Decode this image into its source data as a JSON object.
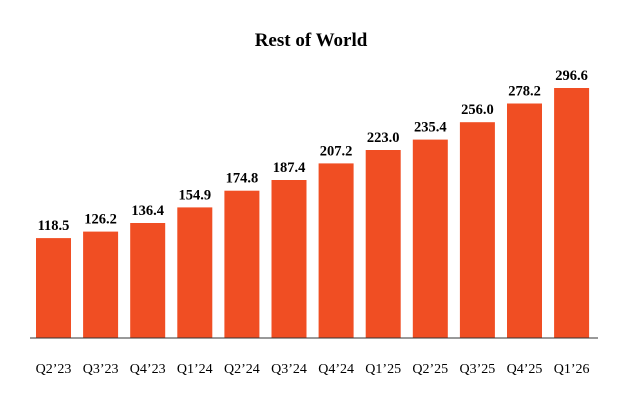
{
  "chart_data": {
    "type": "bar",
    "title": "Rest of World",
    "xlabel": "",
    "ylabel": "",
    "categories": [
      "Q2’23",
      "Q3’23",
      "Q4’23",
      "Q1’24",
      "Q2’24",
      "Q3’24",
      "Q4’24",
      "Q1’25",
      "Q2’25",
      "Q3’25",
      "Q4’25",
      "Q1’26"
    ],
    "values": [
      118.5,
      126.2,
      136.4,
      154.9,
      174.8,
      187.4,
      207.2,
      223.0,
      235.4,
      256.0,
      278.2,
      296.6
    ],
    "value_labels": [
      "118.5",
      "126.2",
      "136.4",
      "154.9",
      "174.8",
      "187.4",
      "207.2",
      "223.0",
      "235.4",
      "256.0",
      "278.2",
      "296.6"
    ],
    "ylim": [
      0,
      296.6
    ],
    "grid": false,
    "legend": "none",
    "bar_color": "#F04E23",
    "axis_color": "#333333"
  }
}
